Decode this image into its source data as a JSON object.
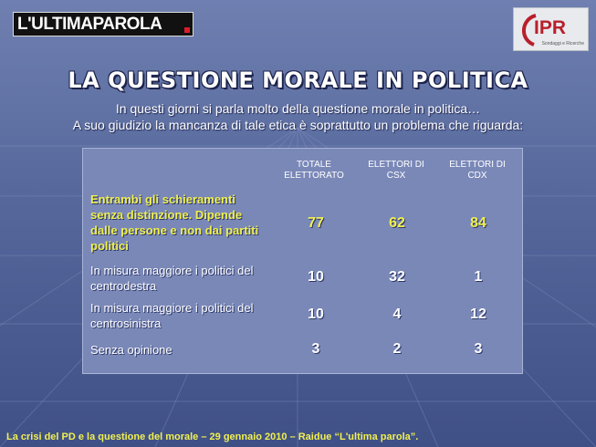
{
  "brand": {
    "left_logo": "L'ULTIMAPAROLA",
    "right_logo": "IPR",
    "right_logo_tagline": "Sondaggi e Ricerche"
  },
  "title": "LA QUESTIONE MORALE IN POLITICA",
  "subtitle_line1": "In questi giorni si parla molto della questione morale in politica…",
  "subtitle_line2": "A suo giudizio la mancanza di tale etica è soprattutto un problema che riguarda:",
  "table": {
    "columns": [
      "TOTALE ELETTORATO",
      "ELETTORI DI CSX",
      "ELETTORI DI CDX"
    ],
    "rows": [
      {
        "label": "Entrambi gli schieramenti senza distinzione. Dipende dalle persone e non dai partiti politici",
        "values": [
          "77",
          "62",
          "84"
        ]
      },
      {
        "label": "In misura maggiore i politici del centrodestra",
        "values": [
          "10",
          "32",
          "1"
        ]
      },
      {
        "label": "In misura maggiore i politici del centrosinistra",
        "values": [
          "10",
          "4",
          "12"
        ]
      },
      {
        "label": "Senza opinione",
        "values": [
          "3",
          "2",
          "3"
        ]
      }
    ]
  },
  "footer": "La crisi del PD e la questione del morale – 29 gennaio 2010 – Raidue “L'ultima parola”.",
  "colors": {
    "highlight": "#f1f04f",
    "brand_red": "#d71e28"
  }
}
